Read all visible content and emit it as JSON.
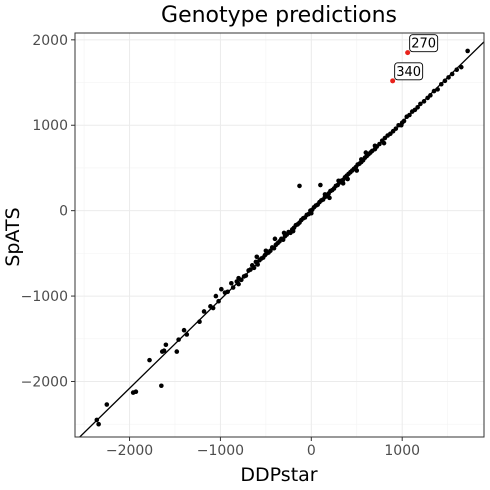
{
  "chart_data": {
    "type": "scatter",
    "title": "Genotype predictions",
    "xlabel": "DDPstar",
    "ylabel": "SpATS",
    "xlim": [
      -2600,
      1900
    ],
    "ylim": [
      -2650,
      2080
    ],
    "x_ticks": [
      -2000,
      -1000,
      0,
      1000
    ],
    "y_ticks": [
      -2000,
      -1000,
      0,
      1000,
      2000
    ],
    "x_tick_labels": [
      "−2000",
      "−1000",
      "0",
      "1000"
    ],
    "y_tick_labels": [
      "−2000",
      "−1000",
      "0",
      "1000",
      "2000"
    ],
    "grid": true,
    "theme": "bw",
    "point_color": "#000000",
    "highlight_color": "#e8221b",
    "fit_line": {
      "intercept": 0,
      "slope": 1.04
    },
    "annotations": [
      {
        "label": "270",
        "x": 1060,
        "y": 1850
      },
      {
        "label": "340",
        "x": 895,
        "y": 1520
      }
    ],
    "highlighted_points": [
      {
        "x": 1060,
        "y": 1850
      },
      {
        "x": 895,
        "y": 1520
      }
    ],
    "points": [
      {
        "x": -2360,
        "y": -2450
      },
      {
        "x": -2340,
        "y": -2500
      },
      {
        "x": -2250,
        "y": -2270
      },
      {
        "x": -1960,
        "y": -2130
      },
      {
        "x": -1930,
        "y": -2120
      },
      {
        "x": -1780,
        "y": -1750
      },
      {
        "x": -1650,
        "y": -2050
      },
      {
        "x": -1640,
        "y": -1650
      },
      {
        "x": -1620,
        "y": -1640
      },
      {
        "x": -1600,
        "y": -1570
      },
      {
        "x": -1480,
        "y": -1650
      },
      {
        "x": -1460,
        "y": -1510
      },
      {
        "x": -1400,
        "y": -1400
      },
      {
        "x": -1370,
        "y": -1450
      },
      {
        "x": -1230,
        "y": -1300
      },
      {
        "x": -1180,
        "y": -1180
      },
      {
        "x": -1110,
        "y": -1120
      },
      {
        "x": -1080,
        "y": -1140
      },
      {
        "x": -1050,
        "y": -1000
      },
      {
        "x": -1020,
        "y": -1060
      },
      {
        "x": -990,
        "y": -920
      },
      {
        "x": -950,
        "y": -960
      },
      {
        "x": -920,
        "y": -950
      },
      {
        "x": -880,
        "y": -850
      },
      {
        "x": -860,
        "y": -900
      },
      {
        "x": -820,
        "y": -830
      },
      {
        "x": -800,
        "y": -790
      },
      {
        "x": -770,
        "y": -810
      },
      {
        "x": -740,
        "y": -770
      },
      {
        "x": -720,
        "y": -760
      },
      {
        "x": -690,
        "y": -700
      },
      {
        "x": -670,
        "y": -690
      },
      {
        "x": -650,
        "y": -640
      },
      {
        "x": -630,
        "y": -670
      },
      {
        "x": -610,
        "y": -600
      },
      {
        "x": -590,
        "y": -630
      },
      {
        "x": -570,
        "y": -580
      },
      {
        "x": -550,
        "y": -560
      },
      {
        "x": -530,
        "y": -550
      },
      {
        "x": -510,
        "y": -520
      },
      {
        "x": -490,
        "y": -500
      },
      {
        "x": -470,
        "y": -490
      },
      {
        "x": -450,
        "y": -470
      },
      {
        "x": -430,
        "y": -430
      },
      {
        "x": -410,
        "y": -440
      },
      {
        "x": -390,
        "y": -400
      },
      {
        "x": -370,
        "y": -380
      },
      {
        "x": -350,
        "y": -360
      },
      {
        "x": -330,
        "y": -330
      },
      {
        "x": -310,
        "y": -340
      },
      {
        "x": -290,
        "y": -300
      },
      {
        "x": -270,
        "y": -280
      },
      {
        "x": -250,
        "y": -250
      },
      {
        "x": -230,
        "y": -260
      },
      {
        "x": -210,
        "y": -220
      },
      {
        "x": -190,
        "y": -200
      },
      {
        "x": -170,
        "y": -170
      },
      {
        "x": -150,
        "y": -160
      },
      {
        "x": -130,
        "y": -140
      },
      {
        "x": -110,
        "y": -110
      },
      {
        "x": -90,
        "y": -90
      },
      {
        "x": -70,
        "y": -80
      },
      {
        "x": -50,
        "y": -50
      },
      {
        "x": -30,
        "y": -40
      },
      {
        "x": -10,
        "y": 0
      },
      {
        "x": 10,
        "y": 10
      },
      {
        "x": 30,
        "y": 40
      },
      {
        "x": 50,
        "y": 60
      },
      {
        "x": 70,
        "y": 70
      },
      {
        "x": 90,
        "y": 100
      },
      {
        "x": 110,
        "y": 120
      },
      {
        "x": 130,
        "y": 130
      },
      {
        "x": 150,
        "y": 160
      },
      {
        "x": 170,
        "y": 170
      },
      {
        "x": 190,
        "y": 200
      },
      {
        "x": 210,
        "y": 230
      },
      {
        "x": 230,
        "y": 240
      },
      {
        "x": 250,
        "y": 260
      },
      {
        "x": 270,
        "y": 290
      },
      {
        "x": 290,
        "y": 300
      },
      {
        "x": 310,
        "y": 330
      },
      {
        "x": 330,
        "y": 350
      },
      {
        "x": 350,
        "y": 360
      },
      {
        "x": 370,
        "y": 390
      },
      {
        "x": 390,
        "y": 410
      },
      {
        "x": 410,
        "y": 430
      },
      {
        "x": 430,
        "y": 450
      },
      {
        "x": 450,
        "y": 470
      },
      {
        "x": 470,
        "y": 490
      },
      {
        "x": 490,
        "y": 510
      },
      {
        "x": 510,
        "y": 540
      },
      {
        "x": 530,
        "y": 550
      },
      {
        "x": 550,
        "y": 570
      },
      {
        "x": 570,
        "y": 590
      },
      {
        "x": 590,
        "y": 620
      },
      {
        "x": 610,
        "y": 640
      },
      {
        "x": 630,
        "y": 660
      },
      {
        "x": 650,
        "y": 680
      },
      {
        "x": 670,
        "y": 700
      },
      {
        "x": 700,
        "y": 720
      },
      {
        "x": 720,
        "y": 750
      },
      {
        "x": 750,
        "y": 780
      },
      {
        "x": 780,
        "y": 820
      },
      {
        "x": 810,
        "y": 850
      },
      {
        "x": 840,
        "y": 880
      },
      {
        "x": 870,
        "y": 900
      },
      {
        "x": 900,
        "y": 930
      },
      {
        "x": 930,
        "y": 960
      },
      {
        "x": 960,
        "y": 1000
      },
      {
        "x": 990,
        "y": 1000
      },
      {
        "x": 1020,
        "y": 1050
      },
      {
        "x": 1050,
        "y": 1100
      },
      {
        "x": 1080,
        "y": 1120
      },
      {
        "x": 1110,
        "y": 1160
      },
      {
        "x": 1140,
        "y": 1180
      },
      {
        "x": 1170,
        "y": 1210
      },
      {
        "x": 1200,
        "y": 1250
      },
      {
        "x": 1240,
        "y": 1280
      },
      {
        "x": 1280,
        "y": 1320
      },
      {
        "x": 1310,
        "y": 1350
      },
      {
        "x": 1350,
        "y": 1400
      },
      {
        "x": 1390,
        "y": 1420
      },
      {
        "x": 1430,
        "y": 1480
      },
      {
        "x": 1470,
        "y": 1520
      },
      {
        "x": 1510,
        "y": 1560
      },
      {
        "x": 1550,
        "y": 1600
      },
      {
        "x": 1600,
        "y": 1650
      },
      {
        "x": 1650,
        "y": 1680
      },
      {
        "x": 1720,
        "y": 1870
      },
      {
        "x": -130,
        "y": 290
      },
      {
        "x": 100,
        "y": 300
      },
      {
        "x": -600,
        "y": -540
      },
      {
        "x": -400,
        "y": -330
      },
      {
        "x": 200,
        "y": 150
      },
      {
        "x": 400,
        "y": 370
      },
      {
        "x": 600,
        "y": 680
      },
      {
        "x": 800,
        "y": 790
      },
      {
        "x": 1000,
        "y": 1030
      },
      {
        "x": -800,
        "y": -860
      },
      {
        "x": -300,
        "y": -260
      },
      {
        "x": 0,
        "y": -30
      },
      {
        "x": 300,
        "y": 350
      },
      {
        "x": 500,
        "y": 470
      },
      {
        "x": 700,
        "y": 760
      },
      {
        "x": -500,
        "y": -470
      },
      {
        "x": -200,
        "y": -240
      },
      {
        "x": 150,
        "y": 190
      },
      {
        "x": 350,
        "y": 320
      },
      {
        "x": 550,
        "y": 600
      }
    ]
  }
}
